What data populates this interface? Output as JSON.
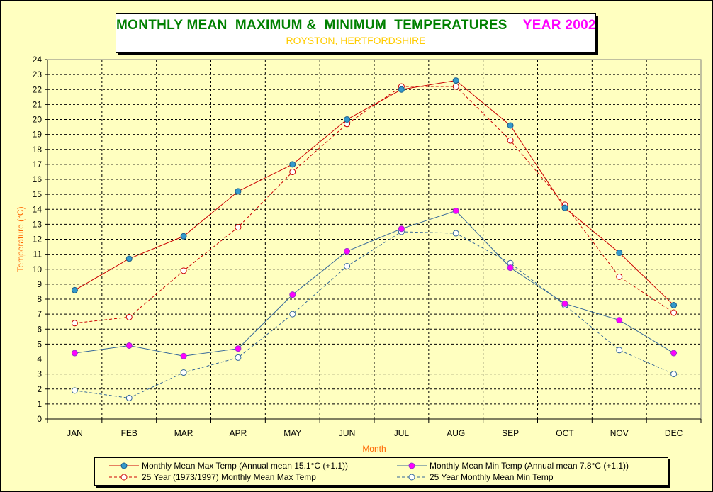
{
  "chart_data": {
    "type": "line",
    "title": "MONTHLY MEAN  MAXIMUM &  MINIMUM  TEMPERATURES",
    "title_year": "YEAR 2002",
    "subtitle": "ROYSTON, HERTFORDSHIRE",
    "xlabel": "Month",
    "ylabel": "Temperature (°C)",
    "ylim": [
      0,
      24
    ],
    "yticks": [
      0,
      1,
      2,
      3,
      4,
      5,
      6,
      7,
      8,
      9,
      10,
      11,
      12,
      13,
      14,
      15,
      16,
      17,
      18,
      19,
      20,
      21,
      22,
      23,
      24
    ],
    "grid": true,
    "legend_position": "bottom",
    "categories": [
      "JAN",
      "FEB",
      "MAR",
      "APR",
      "MAY",
      "JUN",
      "JUL",
      "AUG",
      "SEP",
      "OCT",
      "NOV",
      "DEC"
    ],
    "series": [
      {
        "name": "Monthly Mean Max Temp (Annual mean 15.1°C (+1.1))",
        "values": [
          8.6,
          10.7,
          12.2,
          15.2,
          17.0,
          20.0,
          22.0,
          22.6,
          19.6,
          14.1,
          11.1,
          7.6
        ],
        "color": "#cc0000",
        "marker_color": "#3399cc",
        "style": "solid"
      },
      {
        "name": "25 Year (1973/1997) Monthly Mean Max Temp",
        "values": [
          6.4,
          6.8,
          9.9,
          12.8,
          16.5,
          19.7,
          22.2,
          22.2,
          18.6,
          14.3,
          9.5,
          7.1
        ],
        "color": "#cc0000",
        "marker_color": "#ffffff",
        "style": "dashed"
      },
      {
        "name": "Monthly Mean Min Temp (Annual mean 7.8°C (+1.1))",
        "values": [
          4.4,
          4.9,
          4.2,
          4.7,
          8.3,
          11.2,
          12.7,
          13.9,
          10.1,
          7.7,
          6.6,
          4.4
        ],
        "color": "#336699",
        "marker_color": "#ff00ff",
        "style": "solid"
      },
      {
        "name": "25 Year Monthly Mean Min Temp",
        "values": [
          1.9,
          1.4,
          3.1,
          4.1,
          7.0,
          10.2,
          12.5,
          12.4,
          10.4,
          7.6,
          4.6,
          3.0
        ],
        "color": "#336699",
        "marker_color": "#ffffff",
        "style": "dashed"
      }
    ]
  },
  "colors": {
    "background": "#ffffc0",
    "plot_background": "#ffffc0",
    "title_green": "#008000",
    "title_magenta": "#ff00ff",
    "subtitle_yellow": "#ffcc00",
    "axis_title_orange": "#ff6600"
  }
}
